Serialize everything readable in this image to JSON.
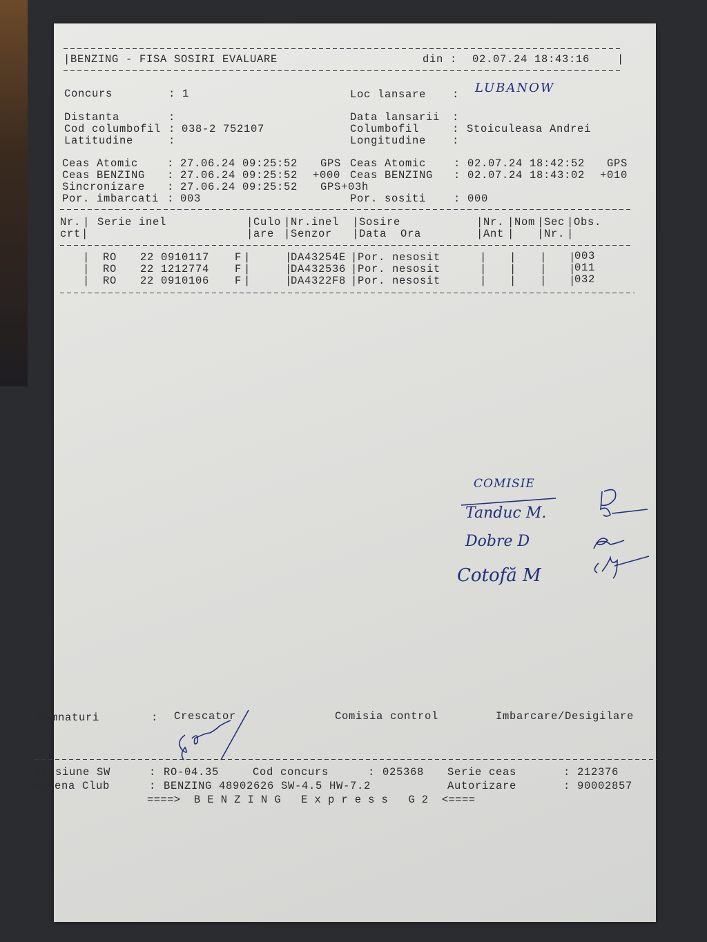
{
  "header": {
    "title": "BENZING - FISA SOSIRI EVALUARE",
    "din_label": "din :",
    "din_value": "02.07.24 18:43:16"
  },
  "fields": {
    "concurs": {
      "label": "Concurs",
      "value": "1"
    },
    "loc_lansare": {
      "label": "Loc lansare",
      "value": "LUBANOW"
    },
    "distanta": {
      "label": "Distanta",
      "value": ""
    },
    "data_lansarii": {
      "label": "Data lansarii",
      "value": ""
    },
    "cod_columbofil": {
      "label": "Cod columbofil",
      "value": "038-2 752107"
    },
    "columbofil": {
      "label": "Columbofil",
      "value": "Stoiculeasa Andrei"
    },
    "latitudine": {
      "label": "Latitudine",
      "value": ""
    },
    "longitudine": {
      "label": "Longitudine",
      "value": ""
    },
    "ceas_atomic_1": {
      "label": "Ceas Atomic",
      "value": "27.06.24 09:25:52",
      "suffix": "GPS"
    },
    "ceas_benzing_1": {
      "label": "Ceas BENZING",
      "value": "27.06.24 09:25:52",
      "suffix": "+000"
    },
    "sincronizare": {
      "label": "Sincronizare",
      "value": "27.06.24 09:25:52",
      "suffix": "GPS+03h"
    },
    "por_imbarcati": {
      "label": "Por. imbarcati",
      "value": "003"
    },
    "ceas_atomic_2": {
      "label": "Ceas Atomic",
      "value": "02.07.24 18:42:52",
      "suffix": "GPS"
    },
    "ceas_benzing_2": {
      "label": "Ceas BENZING",
      "value": "02.07.24 18:43:02",
      "suffix": "+010"
    },
    "por_sositi": {
      "label": "Por. sositi",
      "value": "000"
    }
  },
  "table": {
    "headers": {
      "nr": "Nr.",
      "crt": "crt",
      "serie": "Serie inel",
      "culo": "Culo",
      "are": "are",
      "nrinel": "Nr.inel",
      "senzor": "Senzor",
      "sosire": "Sosire",
      "data_ora": "Data  Ora",
      "nr_ant": "Nr.",
      "ant": "Ant",
      "nom": "Nom",
      "sec": "Sec",
      "sec_nr": "Nr.",
      "obs": "Obs."
    },
    "rows": [
      {
        "country": "RO",
        "serie": "22 0910117",
        "sex": "F",
        "senzor": "DA43254E",
        "sosire": "Por. nesosit",
        "obs": "003"
      },
      {
        "country": "RO",
        "serie": "22 1212774",
        "sex": "F",
        "senzor": "DA432536",
        "sosire": "Por. nesosit",
        "obs": "011"
      },
      {
        "country": "RO",
        "serie": "22 0910106",
        "sex": "F",
        "senzor": "DA4322F8",
        "sosire": "Por. nesosit",
        "obs": "032"
      }
    ]
  },
  "handwritten": {
    "title": "COMISIE",
    "members": [
      "Tanduc M.",
      "Dobre D",
      "Cotofă M"
    ]
  },
  "signatures": {
    "label": "Semnaturi",
    "crescator": "Crescator",
    "comisia": "Comisia control",
    "imbarcare": "Imbarcare/Desigilare"
  },
  "footer": {
    "versiune_label": "Versiune SW",
    "versiune": "RO-04.35",
    "cod_concurs_label": "Cod concurs",
    "cod_concurs": "025368",
    "serie_ceas_label": "Serie ceas",
    "serie_ceas": "212376",
    "antena_label": "Antena Club",
    "antena": "BENZING 48902626 SW-4.5 HW-7.2",
    "autorizare_label": "Autorizare",
    "autorizare": "90002857",
    "banner": "====>  B E N Z I N G   E x p r e s s   G 2  <===="
  }
}
